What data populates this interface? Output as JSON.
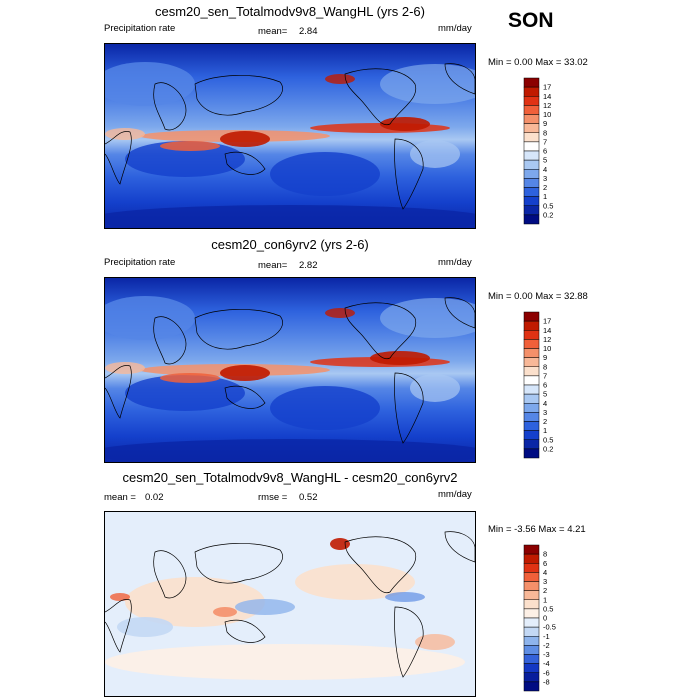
{
  "season": "SON",
  "chart_data": [
    {
      "type": "heatmap",
      "title": "cesm20_sen_Totalmodv9v8_WangHL (yrs 2-6)",
      "left_label": "Precipitation rate",
      "mean_label": "mean=",
      "mean": "2.84",
      "units": "mm/day",
      "minmax_text": "Min =   0.00 Max =  33.02",
      "min": 0.0,
      "max": 33.02,
      "levels": [
        "17",
        "14",
        "12",
        "10",
        "9",
        "8",
        "7",
        "6",
        "5",
        "4",
        "3",
        "2",
        "1",
        "0.5",
        "0.2"
      ],
      "colors": [
        "#8b0000",
        "#c01a00",
        "#e03214",
        "#f0603a",
        "#f4906a",
        "#f8b898",
        "#fbe0cc",
        "#ffffff",
        "#d6e6fa",
        "#a9c8f2",
        "#7da8ec",
        "#5586e6",
        "#2e62de",
        "#1440cc",
        "#0a26a6",
        "#000c82"
      ]
    },
    {
      "type": "heatmap",
      "title": "cesm20_con6yrv2 (yrs 2-6)",
      "left_label": "Precipitation rate",
      "mean_label": "mean=",
      "mean": "2.82",
      "units": "mm/day",
      "minmax_text": "Min =   0.00 Max =  32.88",
      "min": 0.0,
      "max": 32.88,
      "levels": [
        "17",
        "14",
        "12",
        "10",
        "9",
        "8",
        "7",
        "6",
        "5",
        "4",
        "3",
        "2",
        "1",
        "0.5",
        "0.2"
      ],
      "colors": [
        "#8b0000",
        "#c01a00",
        "#e03214",
        "#f0603a",
        "#f4906a",
        "#f8b898",
        "#fbe0cc",
        "#ffffff",
        "#d6e6fa",
        "#a9c8f2",
        "#7da8ec",
        "#5586e6",
        "#2e62de",
        "#1440cc",
        "#0a26a6",
        "#000c82"
      ]
    },
    {
      "type": "heatmap",
      "title": "cesm20_sen_Totalmodv9v8_WangHL - cesm20_con6yrv2",
      "mean_label": "mean =",
      "mean": "0.02",
      "rmse_label": "rmse =",
      "rmse": "0.52",
      "units": "mm/day",
      "minmax_text": "Min =  -3.56 Max =   4.21",
      "min": -3.56,
      "max": 4.21,
      "levels": [
        "8",
        "6",
        "4",
        "3",
        "2",
        "1",
        "0.5",
        "0",
        "-0.5",
        "-1",
        "-2",
        "-3",
        "-4",
        "-6",
        "-8"
      ],
      "colors": [
        "#8b0000",
        "#c01a00",
        "#e03214",
        "#f0603a",
        "#f4906a",
        "#f8b898",
        "#fbe0cc",
        "#fdf0e6",
        "#e4eefb",
        "#c3d8f4",
        "#8eb4ec",
        "#5f8ee4",
        "#3462da",
        "#1438c4",
        "#081e9c",
        "#000c82"
      ]
    }
  ]
}
